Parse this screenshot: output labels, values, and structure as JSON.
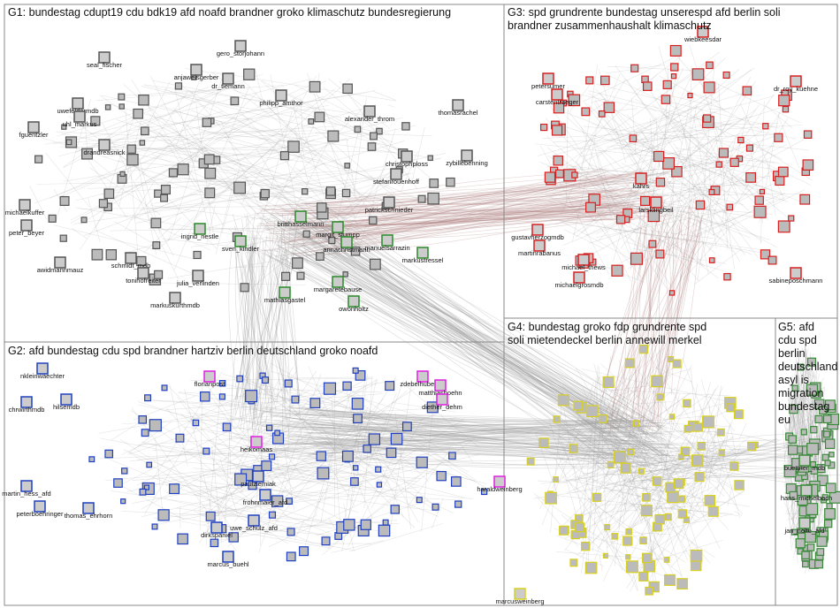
{
  "groups": [
    {
      "title": "G1: bundestag cdupt19 cdu bdk19 afd noafd brandner groko klimaschutz bundesregierung",
      "nodes": [
        "seal_fischer",
        "gero_storjohann",
        "anjaweisgerber",
        "dr_tiemann",
        "uwefeldermdb",
        "uhl_markus",
        "fguentzler",
        "philipp_amthor",
        "alexander_throm",
        "thomasrachel",
        "christophploss",
        "stefanrouenhoff",
        "patrickschnieder",
        "zybillebenning",
        "drandreasnick",
        "michaelkuffer",
        "peter_beyer",
        "awidmannmauz",
        "schmidt_mdb",
        "tonihofreiter",
        "julia_verlinden",
        "markuskurthmdb",
        "sven_kindler",
        "britthasselmann",
        "margit_stumpp",
        "annachristmann",
        "manuelsarrazin",
        "markustressel",
        "margaretebause",
        "mathiasgastel",
        "owonholtz",
        "ingrid_nestle"
      ]
    },
    {
      "title": "G2: afd bundestag cdu spd brandner hartziv berlin deutschland groko noafd",
      "nodes": [
        "nkleinwaechter",
        "chrwirthmdb",
        "hilsemdb",
        "martin_hess_afd",
        "peterboehringer",
        "thomas_ehrhorn",
        "florianpost",
        "heikomaas",
        "paulziemiak",
        "frohnmaier_afd",
        "uwe_schulz_afd",
        "dirkspaniel",
        "marcus_buehl",
        "zdebelhubertus",
        "matthiashoehn",
        "diether_dehm",
        "haraldweinberg"
      ]
    },
    {
      "title": "G3: spd grundrente bundestag unserespd afd berlin soli brandner zusammenhaushalt klimaschutz",
      "nodes": [
        "wiebkeesdar",
        "petersumer",
        "carstentraeger",
        "dr_roy_kuehne",
        "gustavherzogmdb",
        "martinrabanus",
        "kahrs",
        "larsklingbeil",
        "michael_thews",
        "michaelgrosmdb",
        "sabineposchmann"
      ]
    },
    {
      "title": "G4: bundestag groko fdp grundrente spd soli mietendeckel berlin annewill merkel",
      "nodes": [
        "marcusweinberg"
      ]
    },
    {
      "title": "G5: afd cdu spd berlin deutschland asyl is migration bundestag eu",
      "nodes": [
        "buettner_mdb",
        "hans_michelbach",
        "jan_nolte_afd"
      ]
    }
  ]
}
